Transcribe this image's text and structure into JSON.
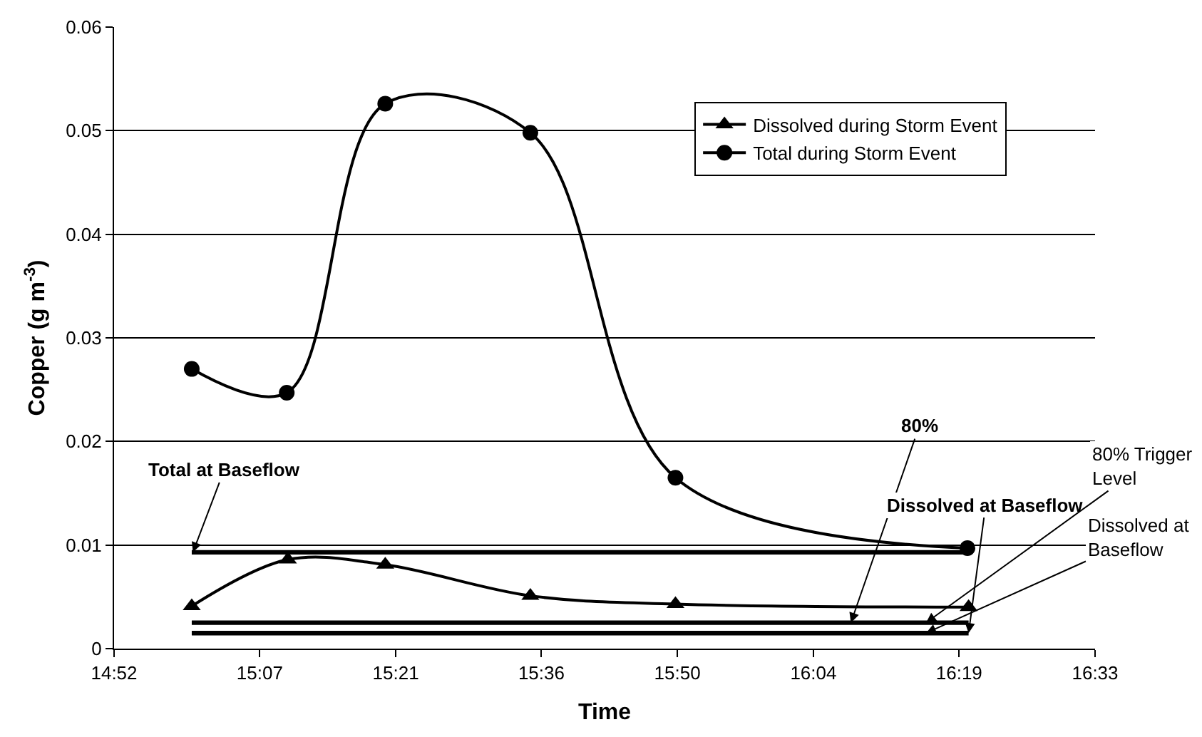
{
  "chart_data": {
    "type": "line",
    "xlabel": "Time",
    "ylabel": "Copper (g m$^{-3}$)",
    "xlim": [
      14.8667,
      16.55
    ],
    "xticks": [
      {
        "value": 14.8667,
        "label": "14:52"
      },
      {
        "value": 15.1167,
        "label": "15:07"
      },
      {
        "value": 15.35,
        "label": "15:21"
      },
      {
        "value": 15.6,
        "label": "15:36"
      },
      {
        "value": 15.8333,
        "label": "15:50"
      },
      {
        "value": 16.0667,
        "label": "16:04"
      },
      {
        "value": 16.3167,
        "label": "16:19"
      },
      {
        "value": 16.55,
        "label": "16:33"
      }
    ],
    "ylim": [
      0,
      0.06
    ],
    "yticks": [
      0,
      0.01,
      0.02,
      0.03,
      0.04,
      0.05,
      0.06
    ],
    "grid": "y",
    "legend": "top right",
    "series": [
      {
        "name": "Dissolved during Storm Event",
        "color": "#000000",
        "marker": "triangle",
        "x": [
          15.0,
          15.165,
          15.332,
          15.581,
          15.83,
          16.333
        ],
        "values": [
          0.0041,
          0.0086,
          0.0081,
          0.0051,
          0.0043,
          0.004
        ]
      },
      {
        "name": "Total during Storm Event",
        "color": "#000000",
        "marker": "circle",
        "x": [
          15.0,
          15.163,
          15.332,
          15.581,
          15.83,
          16.331
        ],
        "values": [
          0.027,
          0.0247,
          0.0526,
          0.0498,
          0.0165,
          0.0097
        ]
      },
      {
        "color": "#000000",
        "marker": "none",
        "x": [
          15.0,
          16.333
        ],
        "values": [
          0.0093,
          0.0093
        ]
      },
      {
        "color": "#000000",
        "marker": "none",
        "x": [
          15.0,
          16.333
        ],
        "values": [
          0.0025,
          0.0025
        ]
      },
      {
        "color": "#000000",
        "marker": "none",
        "x": [
          15.0,
          16.333
        ],
        "values": [
          0.0015,
          0.0015
        ]
      }
    ],
    "annotations": [
      {
        "text": "Total at Baseflow",
        "x": 15.002,
        "y": 0.0093
      },
      {
        "text": "80%",
        "x": 16.131,
        "y": 0.0025
      },
      {
        "text": "Dissolved at Baseflow",
        "x": 16.333,
        "y": 0.0015
      },
      {
        "text": "80% Trigger Level",
        "x": 16.26,
        "y": 0.0025
      },
      {
        "text": "Dissolved at Baseflow",
        "x": 16.26,
        "y": 0.0015
      }
    ]
  }
}
